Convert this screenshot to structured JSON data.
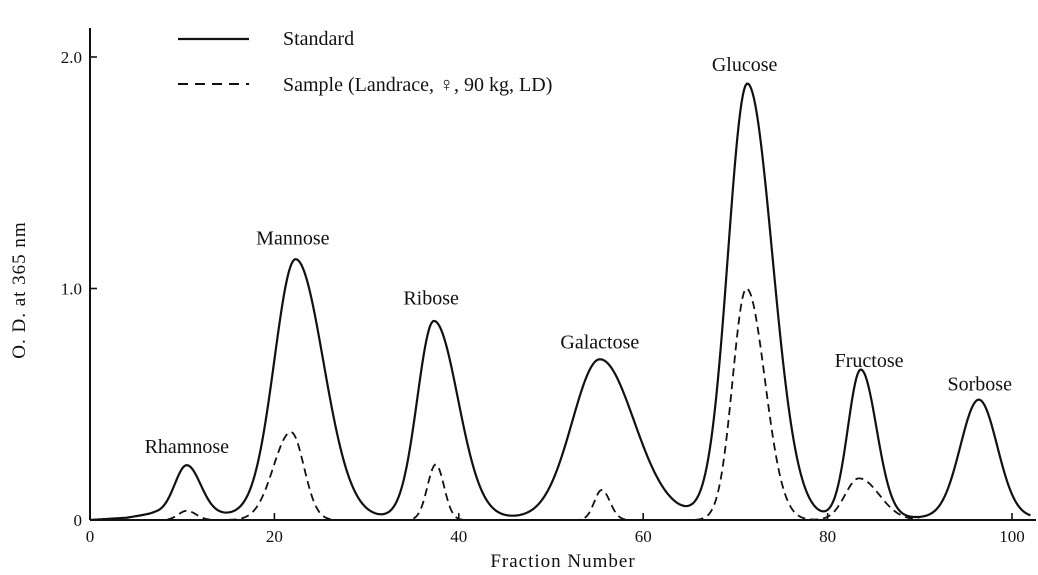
{
  "chart_data": {
    "type": "line",
    "xlabel": "Fraction Number",
    "ylabel": "O. D. at 365 nm",
    "xlim": [
      0,
      102
    ],
    "ylim": [
      0,
      2.2
    ],
    "x_ticks": [
      0,
      20,
      40,
      60,
      80,
      100
    ],
    "x_tick_labels": [
      "0",
      "20",
      "40",
      "60",
      "80",
      "100"
    ],
    "y_ticks": [
      0,
      1.0,
      2.0
    ],
    "y_tick_labels": [
      "0",
      "1.0",
      "2.0"
    ],
    "legend_position": "top-left",
    "series": [
      {
        "name": "Standard",
        "style": "solid",
        "color": "#111111",
        "baseline": [
          [
            0,
            0.0
          ],
          [
            4,
            0.01
          ],
          [
            7,
            0.03
          ],
          [
            30,
            0.01
          ],
          [
            48,
            0.01
          ],
          [
            65,
            0.02
          ],
          [
            79,
            0.01
          ],
          [
            90,
            0.01
          ],
          [
            102,
            0.01
          ]
        ],
        "peaks": [
          {
            "center": 10.5,
            "height": 0.21,
            "sigma_left": 1.3,
            "sigma_right": 1.5
          },
          {
            "center": 22.3,
            "height": 1.11,
            "sigma_left": 2.3,
            "sigma_right": 3.0
          },
          {
            "center": 37.3,
            "height": 0.85,
            "sigma_left": 1.8,
            "sigma_right": 2.6
          },
          {
            "center": 55.3,
            "height": 0.68,
            "sigma_left": 3.0,
            "sigma_right": 3.7
          },
          {
            "center": 71.3,
            "height": 1.87,
            "sigma_left": 2.1,
            "sigma_right": 2.7
          },
          {
            "center": 83.6,
            "height": 0.64,
            "sigma_left": 1.4,
            "sigma_right": 1.7
          },
          {
            "center": 96.4,
            "height": 0.51,
            "sigma_left": 2.0,
            "sigma_right": 2.0
          }
        ]
      },
      {
        "name": "Sample (Landrace, ♀, 90 kg, LD)",
        "style": "dashed",
        "color": "#111111",
        "baseline": [
          [
            7,
            0.0
          ],
          [
            90,
            0.0
          ]
        ],
        "x_range": [
          7,
          90
        ],
        "peaks": [
          {
            "center": 10.5,
            "height": 0.04,
            "sigma_left": 0.9,
            "sigma_right": 1.0
          },
          {
            "center": 21.8,
            "height": 0.38,
            "sigma_left": 1.9,
            "sigma_right": 1.4
          },
          {
            "center": 37.5,
            "height": 0.24,
            "sigma_left": 0.9,
            "sigma_right": 0.9
          },
          {
            "center": 55.5,
            "height": 0.13,
            "sigma_left": 0.8,
            "sigma_right": 0.9
          },
          {
            "center": 71.2,
            "height": 1.0,
            "sigma_left": 1.5,
            "sigma_right": 2.0
          },
          {
            "center": 83.4,
            "height": 0.18,
            "sigma_left": 1.5,
            "sigma_right": 2.2
          }
        ]
      }
    ],
    "annotations": [
      {
        "text": "Rhamnose",
        "x": 10.5,
        "y": 0.29
      },
      {
        "text": "Mannose",
        "x": 22.0,
        "y": 1.19
      },
      {
        "text": "Ribose",
        "x": 37.0,
        "y": 0.93
      },
      {
        "text": "Galactose",
        "x": 55.3,
        "y": 0.74
      },
      {
        "text": "Glucose",
        "x": 71.0,
        "y": 1.94
      },
      {
        "text": "Fructose",
        "x": 84.5,
        "y": 0.66
      },
      {
        "text": "Sorbose",
        "x": 96.5,
        "y": 0.56
      }
    ]
  }
}
